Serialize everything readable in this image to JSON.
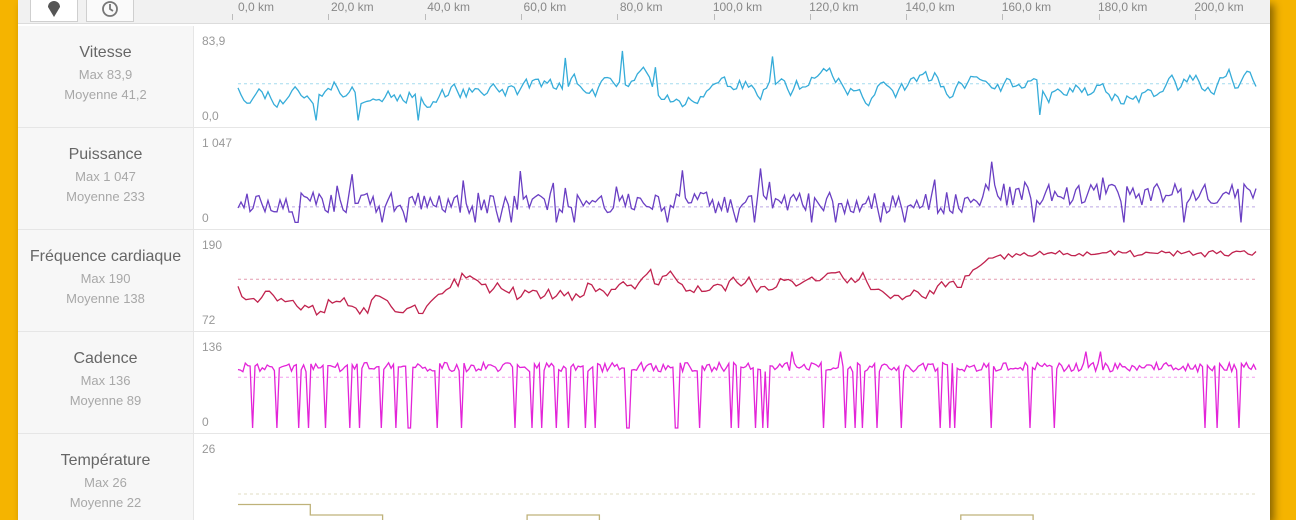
{
  "toolbar": {
    "buttons": [
      {
        "icon": "map-marker-icon"
      },
      {
        "icon": "clock-icon"
      }
    ]
  },
  "distance_axis": {
    "ticks": [
      "0,0 km",
      "20,0 km",
      "40,0 km",
      "60,0 km",
      "80,0 km",
      "100,0 km",
      "120,0 km",
      "140,0 km",
      "160,0 km",
      "180,0 km",
      "200,0 km"
    ]
  },
  "metrics": [
    {
      "key": "speed",
      "name": "Vitesse",
      "max_label": "Max 83,9",
      "avg_label": "Moyenne 41,2",
      "axis_max": "83,9",
      "axis_min": "0,0",
      "color": "#36acd9"
    },
    {
      "key": "power",
      "name": "Puissance",
      "max_label": "Max 1 047",
      "avg_label": "Moyenne 233",
      "axis_max": "1 047",
      "axis_min": "0",
      "color": "#6a3fc3"
    },
    {
      "key": "heart_rate",
      "name": "Fréquence cardiaque",
      "max_label": "Max 190",
      "avg_label": "Moyenne 138",
      "axis_max": "190",
      "axis_min": "72",
      "color": "#c0224e"
    },
    {
      "key": "cadence",
      "name": "Cadence",
      "max_label": "Max 136",
      "avg_label": "Moyenne 89",
      "axis_max": "136",
      "axis_min": "0",
      "color": "#e324d8"
    },
    {
      "key": "temperature",
      "name": "Température",
      "max_label": "Max 26",
      "avg_label": "Moyenne 22",
      "axis_max": "26",
      "axis_min": "",
      "color": "#bfb27a"
    }
  ],
  "chart_data": [
    {
      "type": "line",
      "name": "Vitesse",
      "x_unit": "km",
      "xlim": [
        0,
        213
      ],
      "ylim": [
        0,
        83.9
      ],
      "max": 83.9,
      "mean": 41.2
    },
    {
      "type": "line",
      "name": "Puissance",
      "x_unit": "km",
      "xlim": [
        0,
        213
      ],
      "ylim": [
        0,
        1047
      ],
      "max": 1047,
      "mean": 233
    },
    {
      "type": "line",
      "name": "Fréquence cardiaque",
      "x_unit": "km",
      "xlim": [
        0,
        213
      ],
      "ylim": [
        72,
        190
      ],
      "max": 190,
      "mean": 138
    },
    {
      "type": "line",
      "name": "Cadence",
      "x_unit": "km",
      "xlim": [
        0,
        213
      ],
      "ylim": [
        0,
        136
      ],
      "max": 136,
      "mean": 89
    },
    {
      "type": "line",
      "name": "Température",
      "x_unit": "km",
      "xlim": [
        0,
        213
      ],
      "max": 26,
      "mean": 22
    }
  ]
}
